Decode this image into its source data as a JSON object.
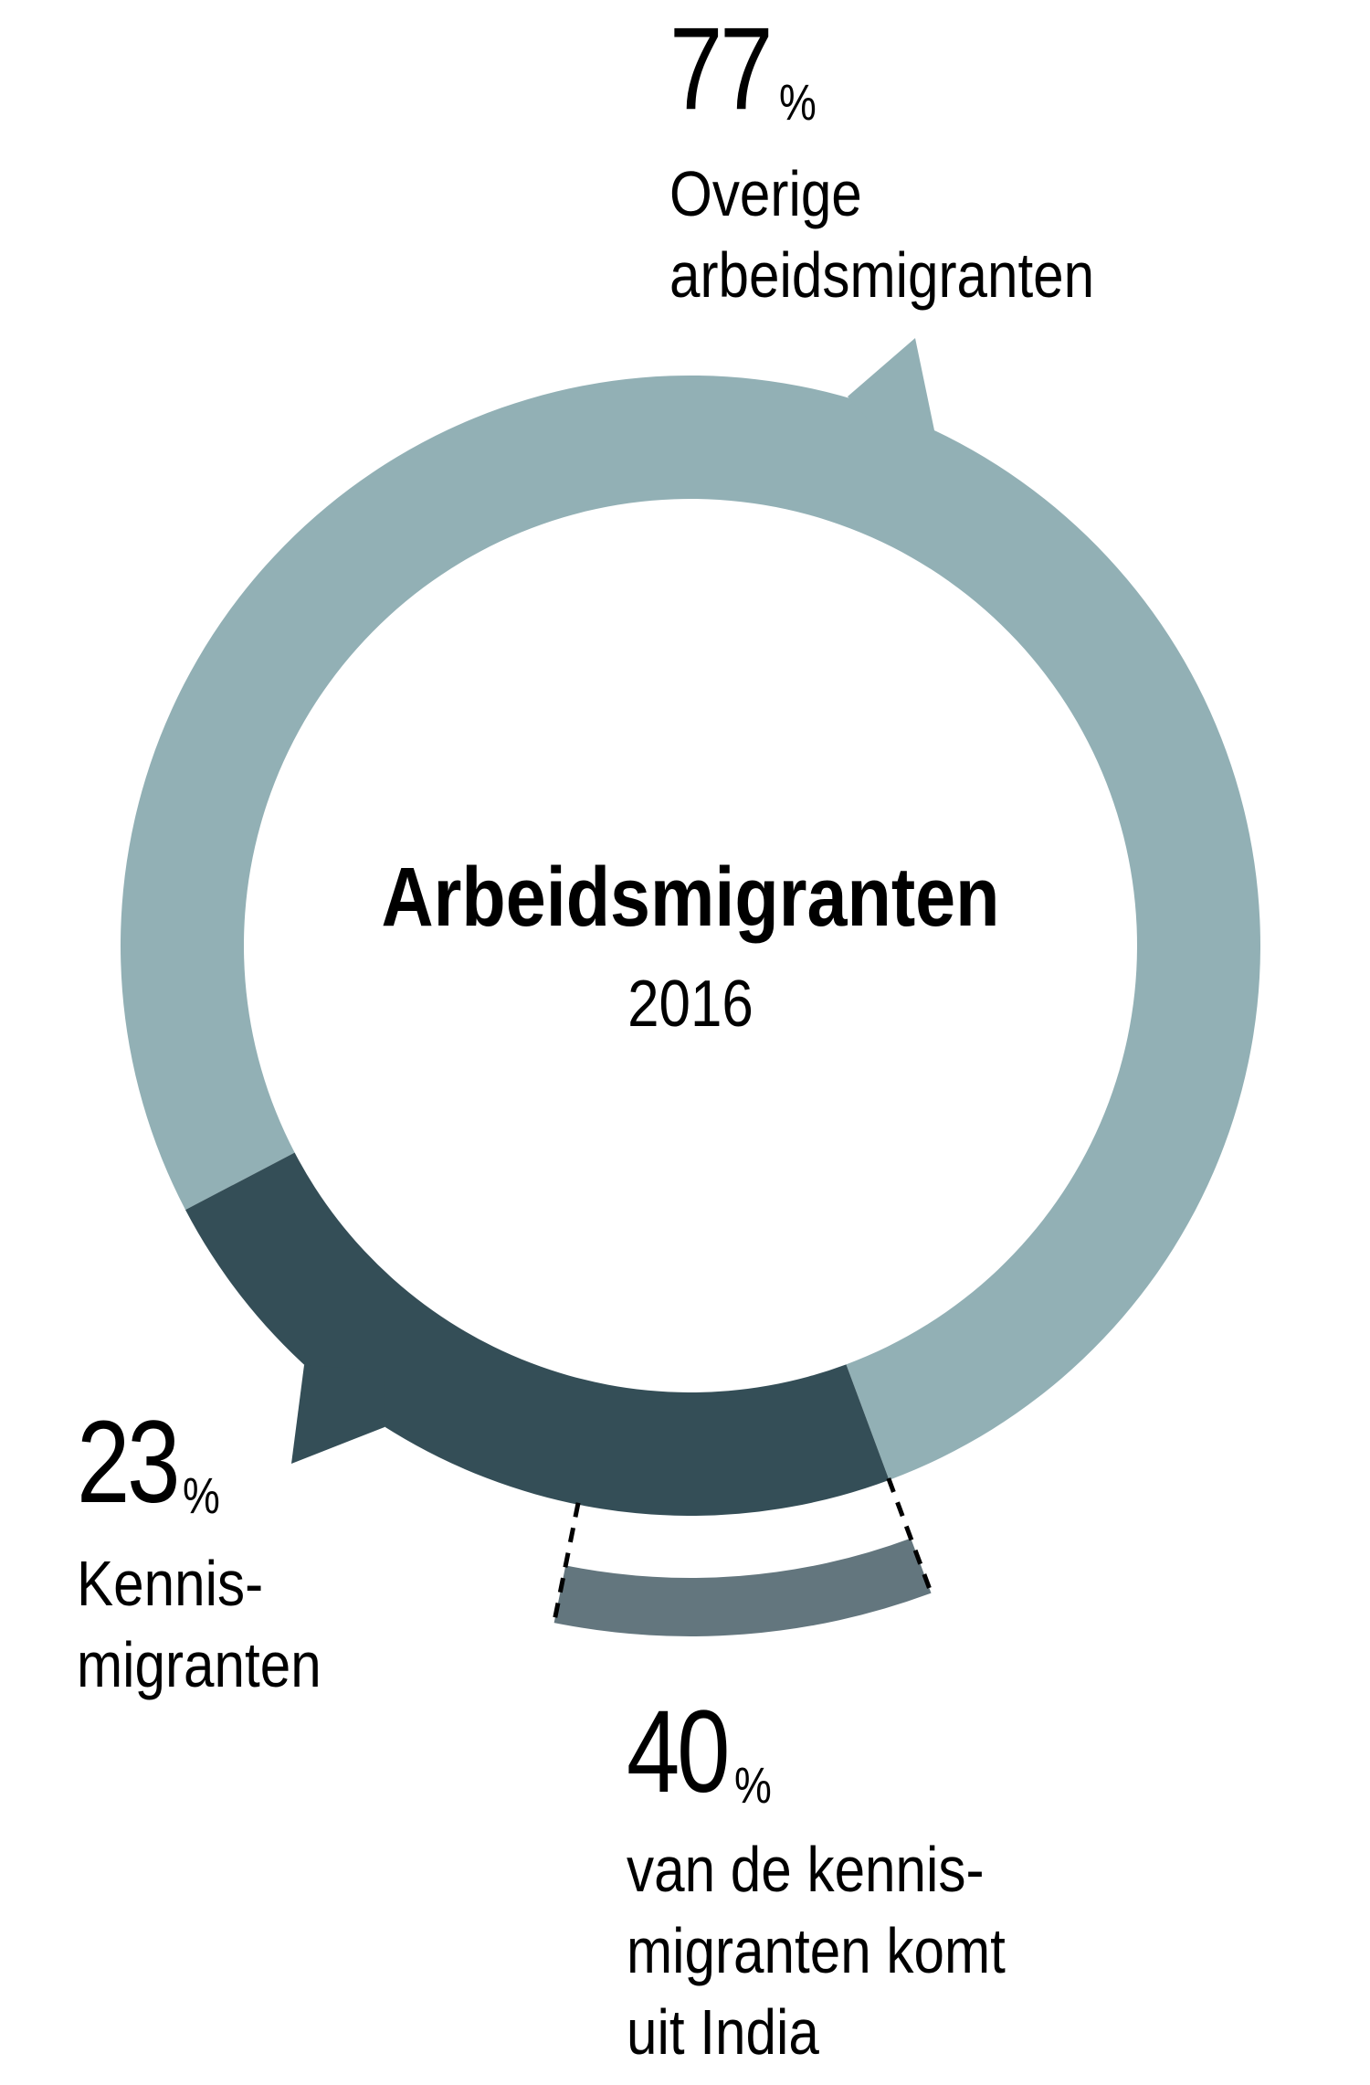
{
  "center": {
    "title": "Arbeidsmigranten",
    "year": "2016"
  },
  "labels": {
    "overige": {
      "value": "77",
      "pct": "%",
      "lines": [
        "Overige",
        "arbeidsmigranten"
      ]
    },
    "kennis": {
      "value": "23",
      "pct": "%",
      "lines": [
        "Kennis-",
        "migranten"
      ]
    },
    "india": {
      "value": "40",
      "pct": "%",
      "lines": [
        "van de kennis-",
        "migranten komt",
        "uit India"
      ]
    }
  },
  "colors": {
    "overige": "#92b0b5",
    "kennis": "#344e57",
    "india": "#63767e",
    "dashes": "#000000",
    "text": "#000000",
    "background": "#ffffff"
  },
  "chart_data": {
    "type": "pie",
    "subtype": "donut",
    "title": "Arbeidsmigranten",
    "subtitle": "2016",
    "categories": [
      "Overige arbeidsmigranten",
      "Kennismigranten"
    ],
    "values": [
      77,
      23
    ],
    "unit": "%",
    "sub_breakdown": {
      "parent": "Kennismigranten",
      "categories": [
        "Uit India"
      ],
      "values": [
        40
      ],
      "unit": "%",
      "description": "van de kennismigranten komt uit India"
    },
    "legend": "none (direct labels)",
    "grid": false
  }
}
